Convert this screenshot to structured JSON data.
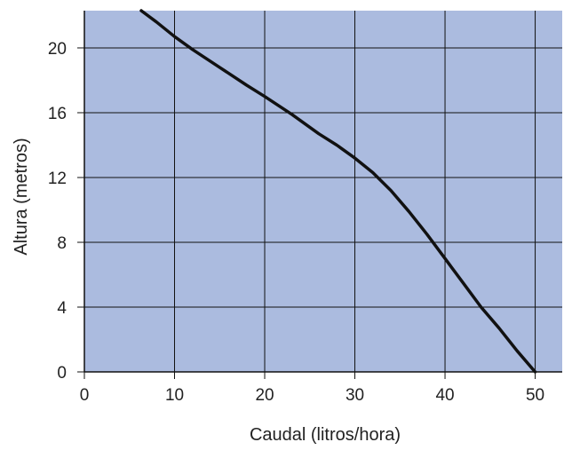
{
  "chart_data": {
    "type": "line",
    "title": "",
    "xlabel": "Caudal (litros/hora)",
    "ylabel": "Altura (metros)",
    "xlim": [
      0,
      53
    ],
    "ylim": [
      0,
      22.3
    ],
    "x_ticks": [
      0,
      10,
      20,
      30,
      40,
      50
    ],
    "y_ticks": [
      0,
      4,
      8,
      12,
      16,
      20
    ],
    "grid": true,
    "legend": "none",
    "plot_background": "#abbbdf",
    "line_color": "#111111",
    "series": [
      {
        "x": [
          6.3,
          8,
          10,
          12,
          15,
          18,
          20,
          23,
          26,
          28,
          30,
          32,
          34,
          36,
          38,
          40,
          42,
          44,
          46,
          48,
          50
        ],
        "y": [
          22.3,
          21.6,
          20.7,
          19.9,
          18.8,
          17.7,
          17.0,
          15.9,
          14.7,
          14.0,
          13.2,
          12.3,
          11.2,
          9.9,
          8.5,
          7.0,
          5.5,
          4.0,
          2.7,
          1.3,
          0.0
        ]
      }
    ]
  }
}
